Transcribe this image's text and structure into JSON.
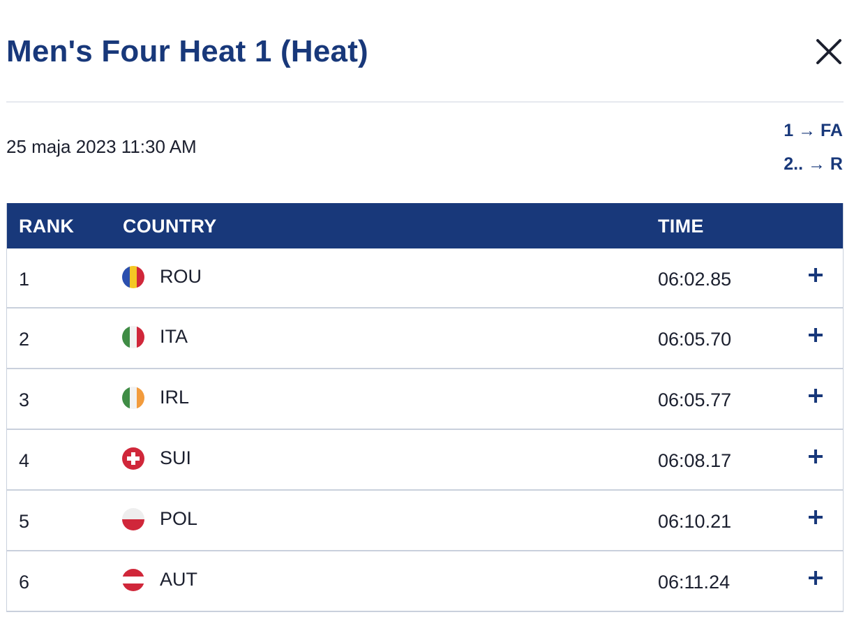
{
  "header": {
    "title": "Men's Four Heat 1 (Heat)",
    "close_icon": "close-icon"
  },
  "info": {
    "date": "25 maja 2023 11:30 AM",
    "progression": [
      "1 → FA",
      "2.. → R"
    ]
  },
  "table": {
    "columns": [
      "RANK",
      "COUNTRY",
      "TIME"
    ],
    "rows": [
      {
        "rank": "1",
        "country": "ROU",
        "flag": "flag-romania-icon",
        "time": "06:02.85"
      },
      {
        "rank": "2",
        "country": "ITA",
        "flag": "flag-italy-icon",
        "time": "06:05.70"
      },
      {
        "rank": "3",
        "country": "IRL",
        "flag": "flag-ireland-icon",
        "time": "06:05.77"
      },
      {
        "rank": "4",
        "country": "SUI",
        "flag": "flag-switzerland-icon",
        "time": "06:08.17"
      },
      {
        "rank": "5",
        "country": "POL",
        "flag": "flag-poland-icon",
        "time": "06:10.21"
      },
      {
        "rank": "6",
        "country": "AUT",
        "flag": "flag-austria-icon",
        "time": "06:11.24"
      }
    ],
    "expand_icon": "plus-icon"
  },
  "colors": {
    "brand": "#18387a",
    "divider": "#e6e9ef",
    "row_border": "#c9d0dc"
  }
}
